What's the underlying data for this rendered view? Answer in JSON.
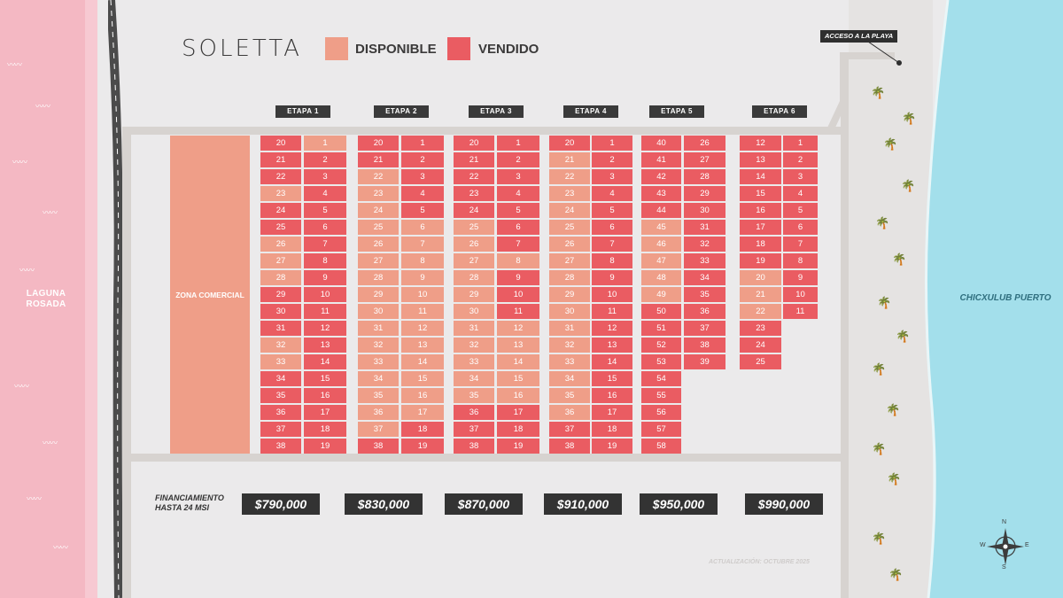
{
  "brand": "SOLETTA",
  "legend": {
    "available": "DISPONIBLE",
    "sold": "VENDIDO"
  },
  "colors": {
    "available": "#ef9e88",
    "sold": "#ea5c62",
    "lagoon": "#f4b8c3",
    "sea": "#a6e0ec",
    "dark": "#333333"
  },
  "lagoon_label": "LAGUNA ROSADA",
  "sea_label": "CHICXULUB PUERTO",
  "beach_access": "ACCESO A LA PLAYA",
  "commercial_zone": "ZONA COMERCIAL",
  "financing": "FINANCIAMIENTO HASTA 24 MSI",
  "updated": "ACTUALIZACIÓN: OCTUBRE 2025",
  "compass": {
    "n": "N",
    "s": "S",
    "e": "E",
    "w": "W"
  },
  "stages": [
    {
      "name": "ETAPA 1",
      "price": "$790,000",
      "left": {
        "labels": [
          "20",
          "21",
          "22",
          "23",
          "24",
          "25",
          "26",
          "27",
          "28",
          "29",
          "30",
          "31",
          "32",
          "33",
          "34",
          "35",
          "36",
          "37",
          "38"
        ],
        "status": [
          "V",
          "V",
          "V",
          "D",
          "V",
          "V",
          "D",
          "D",
          "D",
          "V",
          "V",
          "V",
          "D",
          "D",
          "V",
          "V",
          "V",
          "V",
          "V"
        ]
      },
      "right": {
        "labels": [
          "1",
          "2",
          "3",
          "4",
          "5",
          "6",
          "7",
          "8",
          "9",
          "10",
          "11",
          "12",
          "13",
          "14",
          "15",
          "16",
          "17",
          "18",
          "19"
        ],
        "status": [
          "D",
          "V",
          "V",
          "V",
          "V",
          "V",
          "V",
          "V",
          "V",
          "V",
          "V",
          "V",
          "V",
          "V",
          "V",
          "V",
          "V",
          "V",
          "V"
        ]
      }
    },
    {
      "name": "ETAPA 2",
      "price": "$830,000",
      "left": {
        "labels": [
          "20",
          "21",
          "22",
          "23",
          "24",
          "25",
          "26",
          "27",
          "28",
          "29",
          "30",
          "31",
          "32",
          "33",
          "34",
          "35",
          "36",
          "37",
          "38"
        ],
        "status": [
          "V",
          "V",
          "D",
          "D",
          "D",
          "D",
          "D",
          "D",
          "D",
          "D",
          "D",
          "D",
          "D",
          "D",
          "D",
          "D",
          "D",
          "D",
          "V"
        ]
      },
      "right": {
        "labels": [
          "1",
          "2",
          "3",
          "4",
          "5",
          "6",
          "7",
          "8",
          "9",
          "10",
          "11",
          "12",
          "13",
          "14",
          "15",
          "16",
          "17",
          "18",
          "19"
        ],
        "status": [
          "V",
          "V",
          "V",
          "V",
          "V",
          "D",
          "D",
          "D",
          "D",
          "D",
          "D",
          "D",
          "D",
          "D",
          "D",
          "D",
          "D",
          "V",
          "V"
        ]
      }
    },
    {
      "name": "ETAPA 3",
      "price": "$870,000",
      "left": {
        "labels": [
          "20",
          "21",
          "22",
          "23",
          "24",
          "25",
          "26",
          "27",
          "28",
          "29",
          "30",
          "31",
          "32",
          "33",
          "34",
          "35",
          "36",
          "37",
          "38"
        ],
        "status": [
          "V",
          "V",
          "V",
          "V",
          "V",
          "D",
          "D",
          "D",
          "D",
          "D",
          "D",
          "D",
          "D",
          "D",
          "D",
          "D",
          "V",
          "V",
          "V"
        ]
      },
      "right": {
        "labels": [
          "1",
          "2",
          "3",
          "4",
          "5",
          "6",
          "7",
          "8",
          "9",
          "10",
          "11",
          "12",
          "13",
          "14",
          "15",
          "16",
          "17",
          "18",
          "19"
        ],
        "status": [
          "V",
          "V",
          "V",
          "V",
          "V",
          "V",
          "V",
          "D",
          "V",
          "V",
          "V",
          "D",
          "D",
          "D",
          "D",
          "D",
          "V",
          "V",
          "V"
        ]
      }
    },
    {
      "name": "ETAPA 4",
      "price": "$910,000",
      "left": {
        "labels": [
          "20",
          "21",
          "22",
          "23",
          "24",
          "25",
          "26",
          "27",
          "28",
          "29",
          "30",
          "31",
          "32",
          "33",
          "34",
          "35",
          "36",
          "37",
          "38"
        ],
        "status": [
          "V",
          "D",
          "D",
          "D",
          "D",
          "D",
          "D",
          "D",
          "D",
          "D",
          "D",
          "D",
          "D",
          "D",
          "D",
          "D",
          "D",
          "V",
          "V"
        ]
      },
      "right": {
        "labels": [
          "1",
          "2",
          "3",
          "4",
          "5",
          "6",
          "7",
          "8",
          "9",
          "10",
          "11",
          "12",
          "13",
          "14",
          "15",
          "16",
          "17",
          "18",
          "19"
        ],
        "status": [
          "V",
          "V",
          "V",
          "V",
          "V",
          "V",
          "V",
          "V",
          "V",
          "V",
          "V",
          "V",
          "V",
          "V",
          "V",
          "V",
          "V",
          "V",
          "V"
        ]
      }
    },
    {
      "name": "ETAPA 5",
      "price": "$950,000",
      "left": {
        "labels": [
          "40",
          "41",
          "42",
          "43",
          "44",
          "45",
          "46",
          "47",
          "48",
          "49",
          "50",
          "51",
          "52",
          "53",
          "54",
          "55",
          "56",
          "57",
          "58"
        ],
        "status": [
          "V",
          "V",
          "V",
          "V",
          "V",
          "D",
          "D",
          "D",
          "D",
          "D",
          "V",
          "V",
          "V",
          "V",
          "V",
          "V",
          "V",
          "V",
          "V"
        ]
      },
      "right": {
        "labels": [
          "26",
          "27",
          "28",
          "29",
          "30",
          "31",
          "32",
          "33",
          "34",
          "35",
          "36",
          "37",
          "38",
          "39"
        ],
        "status": [
          "V",
          "V",
          "V",
          "V",
          "V",
          "V",
          "V",
          "V",
          "V",
          "V",
          "V",
          "V",
          "V",
          "V"
        ]
      }
    },
    {
      "name": "ETAPA 6",
      "price": "$990,000",
      "left": {
        "labels": [
          "12",
          "13",
          "14",
          "15",
          "16",
          "17",
          "18",
          "19",
          "20",
          "21",
          "22",
          "23",
          "24",
          "25"
        ],
        "status": [
          "V",
          "V",
          "V",
          "V",
          "V",
          "V",
          "V",
          "V",
          "D",
          "D",
          "D",
          "V",
          "V",
          "V"
        ]
      },
      "right": {
        "labels": [
          "1",
          "2",
          "3",
          "4",
          "5",
          "6",
          "7",
          "8",
          "9",
          "10",
          "11"
        ],
        "status": [
          "V",
          "V",
          "V",
          "V",
          "V",
          "V",
          "V",
          "V",
          "V",
          "V",
          "V"
        ]
      }
    }
  ]
}
